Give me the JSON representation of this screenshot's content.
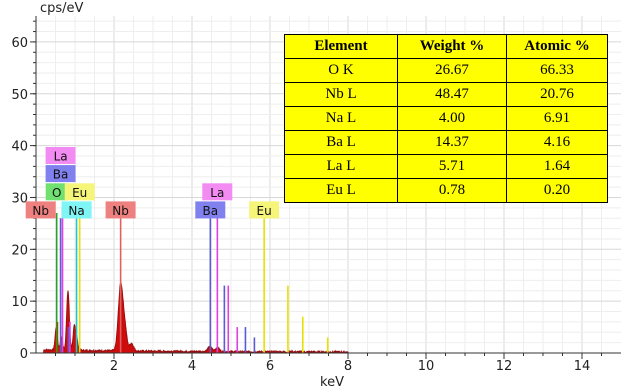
{
  "chart_data": {
    "type": "line",
    "ylabel": "cps/eV",
    "xlabel": "keV",
    "xlim": [
      0,
      15
    ],
    "ylim": [
      0,
      65
    ],
    "xticks": [
      2,
      4,
      6,
      8,
      10,
      12,
      14
    ],
    "yticks": [
      0,
      10,
      20,
      30,
      40,
      50,
      60
    ],
    "grid": true,
    "spectrum": {
      "color": "#cc0000",
      "peaks": [
        {
          "x": 0.52,
          "y": 4.5,
          "w": 0.03
        },
        {
          "x": 0.65,
          "y": 2.5,
          "w": 0.03
        },
        {
          "x": 0.82,
          "y": 11.5,
          "w": 0.035
        },
        {
          "x": 0.98,
          "y": 4.5,
          "w": 0.03
        },
        {
          "x": 1.04,
          "y": 2.5,
          "w": 0.03
        },
        {
          "x": 2.17,
          "y": 12.8,
          "w": 0.06
        },
        {
          "x": 2.28,
          "y": 4.0,
          "w": 0.05
        },
        {
          "x": 2.45,
          "y": 1.5,
          "w": 0.05
        },
        {
          "x": 4.46,
          "y": 1.0,
          "w": 0.05
        },
        {
          "x": 4.65,
          "y": 0.8,
          "w": 0.05
        }
      ]
    },
    "marker_lines": [
      {
        "x": 0.53,
        "y": 27,
        "color": "#2ca02c"
      },
      {
        "x": 0.55,
        "y": 6,
        "color": "#7f6000"
      },
      {
        "x": 0.63,
        "y": 26,
        "color": "#5b5bd6"
      },
      {
        "x": 0.68,
        "y": 28,
        "color": "#e040e0"
      },
      {
        "x": 0.83,
        "y": 5,
        "color": "#5b5bd6"
      },
      {
        "x": 0.87,
        "y": 6,
        "color": "#e040e0"
      },
      {
        "x": 1.04,
        "y": 26,
        "color": "#20c8c8"
      },
      {
        "x": 1.12,
        "y": 28,
        "color": "#e8e000"
      },
      {
        "x": 2.17,
        "y": 26,
        "color": "#e06060"
      },
      {
        "x": 4.47,
        "y": 26,
        "color": "#5b5bd6"
      },
      {
        "x": 4.65,
        "y": 29,
        "color": "#e040e0"
      },
      {
        "x": 4.83,
        "y": 13,
        "color": "#5b5bd6"
      },
      {
        "x": 4.93,
        "y": 13,
        "color": "#e040e0"
      },
      {
        "x": 5.16,
        "y": 5,
        "color": "#e040e0"
      },
      {
        "x": 5.37,
        "y": 5,
        "color": "#5b5bd6"
      },
      {
        "x": 5.6,
        "y": 3,
        "color": "#5b5bd6"
      },
      {
        "x": 5.85,
        "y": 26,
        "color": "#e8e000"
      },
      {
        "x": 6.46,
        "y": 13,
        "color": "#e8e000"
      },
      {
        "x": 6.84,
        "y": 7,
        "color": "#e8e000"
      },
      {
        "x": 7.48,
        "y": 3,
        "color": "#e8e000"
      }
    ],
    "peak_labels": [
      {
        "text": "La",
        "x": 0.63,
        "y": 38,
        "bg": "#f28cf2"
      },
      {
        "text": "Ba",
        "x": 0.63,
        "y": 34.5,
        "bg": "#8080ee"
      },
      {
        "text": "O",
        "x": 0.53,
        "y": 31,
        "bg": "#70e070"
      },
      {
        "text": "Eu",
        "x": 1.12,
        "y": 31,
        "bg": "#f5f57a"
      },
      {
        "text": "Nb",
        "x": 0.12,
        "y": 27.5,
        "bg": "#ee8080"
      },
      {
        "text": "Na",
        "x": 1.04,
        "y": 27.5,
        "bg": "#7ff5f5"
      },
      {
        "text": "Nb",
        "x": 2.17,
        "y": 27.5,
        "bg": "#ee8080"
      },
      {
        "text": "La",
        "x": 4.65,
        "y": 31,
        "bg": "#f28cf2"
      },
      {
        "text": "Ba",
        "x": 4.47,
        "y": 27.5,
        "bg": "#8080ee"
      },
      {
        "text": "Eu",
        "x": 5.85,
        "y": 27.5,
        "bg": "#f5f57a"
      }
    ]
  },
  "table": {
    "headers": [
      "Element",
      "Weight %",
      "Atomic %"
    ],
    "rows": [
      [
        "O K",
        "26.67",
        "66.33"
      ],
      [
        "Nb L",
        "48.47",
        "20.76"
      ],
      [
        "Na L",
        "4.00",
        "6.91"
      ],
      [
        "Ba L",
        "14.37",
        "4.16"
      ],
      [
        "La L",
        "5.71",
        "1.64"
      ],
      [
        "Eu L",
        "0.78",
        "0.20"
      ]
    ]
  }
}
